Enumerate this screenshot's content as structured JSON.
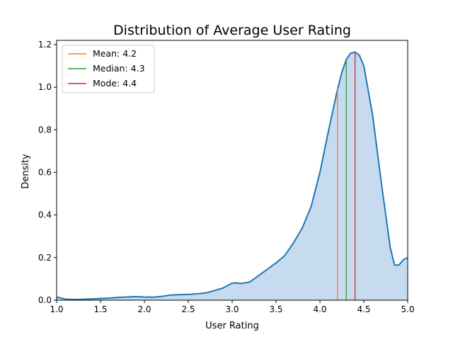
{
  "chart_data": {
    "type": "area",
    "title": "Distribution of Average User Rating",
    "xlabel": "User Rating",
    "ylabel": "Density",
    "xlim": [
      1.0,
      5.0
    ],
    "ylim": [
      0.0,
      1.22
    ],
    "xticks": [
      "1.0",
      "1.5",
      "2.0",
      "2.5",
      "3.0",
      "3.5",
      "4.0",
      "4.5",
      "5.0"
    ],
    "yticks": [
      "0.0",
      "0.2",
      "0.4",
      "0.6",
      "0.8",
      "1.0",
      "1.2"
    ],
    "grid": false,
    "legend_position": "top-left",
    "series": [
      {
        "style": "kde",
        "color": "#1f77b4",
        "fill_color": "#c6dbef",
        "x": [
          1.0,
          1.1,
          1.2,
          1.3,
          1.4,
          1.5,
          1.6,
          1.7,
          1.8,
          1.9,
          2.0,
          2.1,
          2.2,
          2.3,
          2.4,
          2.5,
          2.6,
          2.7,
          2.8,
          2.9,
          3.0,
          3.05,
          3.1,
          3.2,
          3.3,
          3.4,
          3.5,
          3.6,
          3.7,
          3.8,
          3.9,
          4.0,
          4.1,
          4.2,
          4.25,
          4.3,
          4.35,
          4.4,
          4.45,
          4.5,
          4.6,
          4.7,
          4.8,
          4.85,
          4.9,
          4.95,
          5.0
        ],
        "y": [
          0.015,
          0.005,
          0.003,
          0.004,
          0.006,
          0.008,
          0.01,
          0.013,
          0.015,
          0.017,
          0.015,
          0.014,
          0.018,
          0.024,
          0.026,
          0.027,
          0.03,
          0.034,
          0.045,
          0.058,
          0.08,
          0.081,
          0.078,
          0.085,
          0.115,
          0.145,
          0.175,
          0.21,
          0.27,
          0.34,
          0.44,
          0.6,
          0.8,
          0.99,
          1.07,
          1.13,
          1.16,
          1.165,
          1.15,
          1.1,
          0.87,
          0.55,
          0.25,
          0.165,
          0.165,
          0.19,
          0.2
        ]
      }
    ],
    "vlines": [
      {
        "label": "Mean: 4.2",
        "x": 4.2,
        "ymax": 1.0,
        "color": "#ff7f0e"
      },
      {
        "label": "Median: 4.3",
        "x": 4.3,
        "ymax": 1.13,
        "color": "#2ca02c"
      },
      {
        "label": "Mode: 4.4",
        "x": 4.4,
        "ymax": 1.165,
        "color": "#d62728"
      }
    ]
  }
}
